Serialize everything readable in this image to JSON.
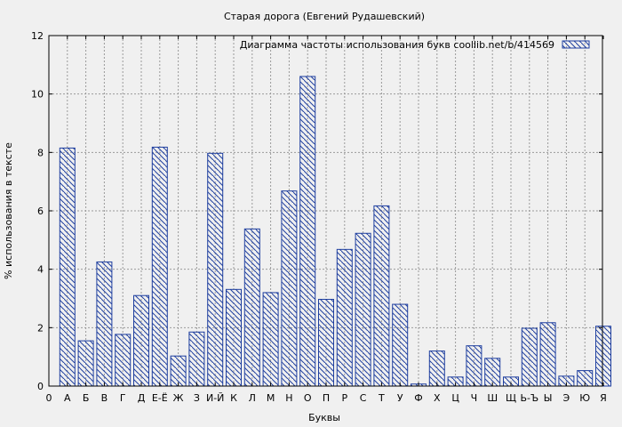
{
  "chart_data": {
    "type": "bar",
    "title": "Старая дорога (Евгений Рудашевский)",
    "xlabel": "Буквы",
    "ylabel": "% использования в тексте",
    "legend": "Диаграмма частоты использования букв  coollib.net/b/414569",
    "legend_position": "top-right",
    "grid": true,
    "ylim": [
      0,
      12
    ],
    "yticks": [
      0,
      2,
      4,
      6,
      8,
      10,
      12
    ],
    "x_tick_labels": [
      "0",
      "А",
      "Б",
      "В",
      "Г",
      "Д",
      "Е-Ё",
      "Ж",
      "З",
      "И-Й",
      "К",
      "Л",
      "М",
      "Н",
      "О",
      "П",
      "Р",
      "С",
      "Т",
      "У",
      "Ф",
      "Х",
      "Ц",
      "Ч",
      "Ш",
      "Щ",
      "Ь-Ъ",
      "Ы",
      "Э",
      "Ю",
      "Я"
    ],
    "categories": [
      "А",
      "Б",
      "В",
      "Г",
      "Д",
      "Е-Ё",
      "Ж",
      "З",
      "И-Й",
      "К",
      "Л",
      "М",
      "Н",
      "О",
      "П",
      "Р",
      "С",
      "Т",
      "У",
      "Ф",
      "Х",
      "Ц",
      "Ч",
      "Ш",
      "Щ",
      "Ь-Ъ",
      "Ы",
      "Э",
      "Ю",
      "Я"
    ],
    "values": [
      8.15,
      1.55,
      4.25,
      1.77,
      3.1,
      8.18,
      1.03,
      1.85,
      7.97,
      3.31,
      5.38,
      3.2,
      6.68,
      10.6,
      2.97,
      4.68,
      5.23,
      6.17,
      2.8,
      0.07,
      1.2,
      0.31,
      1.38,
      0.95,
      0.31,
      1.98,
      2.17,
      0.34,
      0.53,
      2.05
    ],
    "bar_color": "#1f3f9f",
    "background_color": "#f0f0f0"
  }
}
